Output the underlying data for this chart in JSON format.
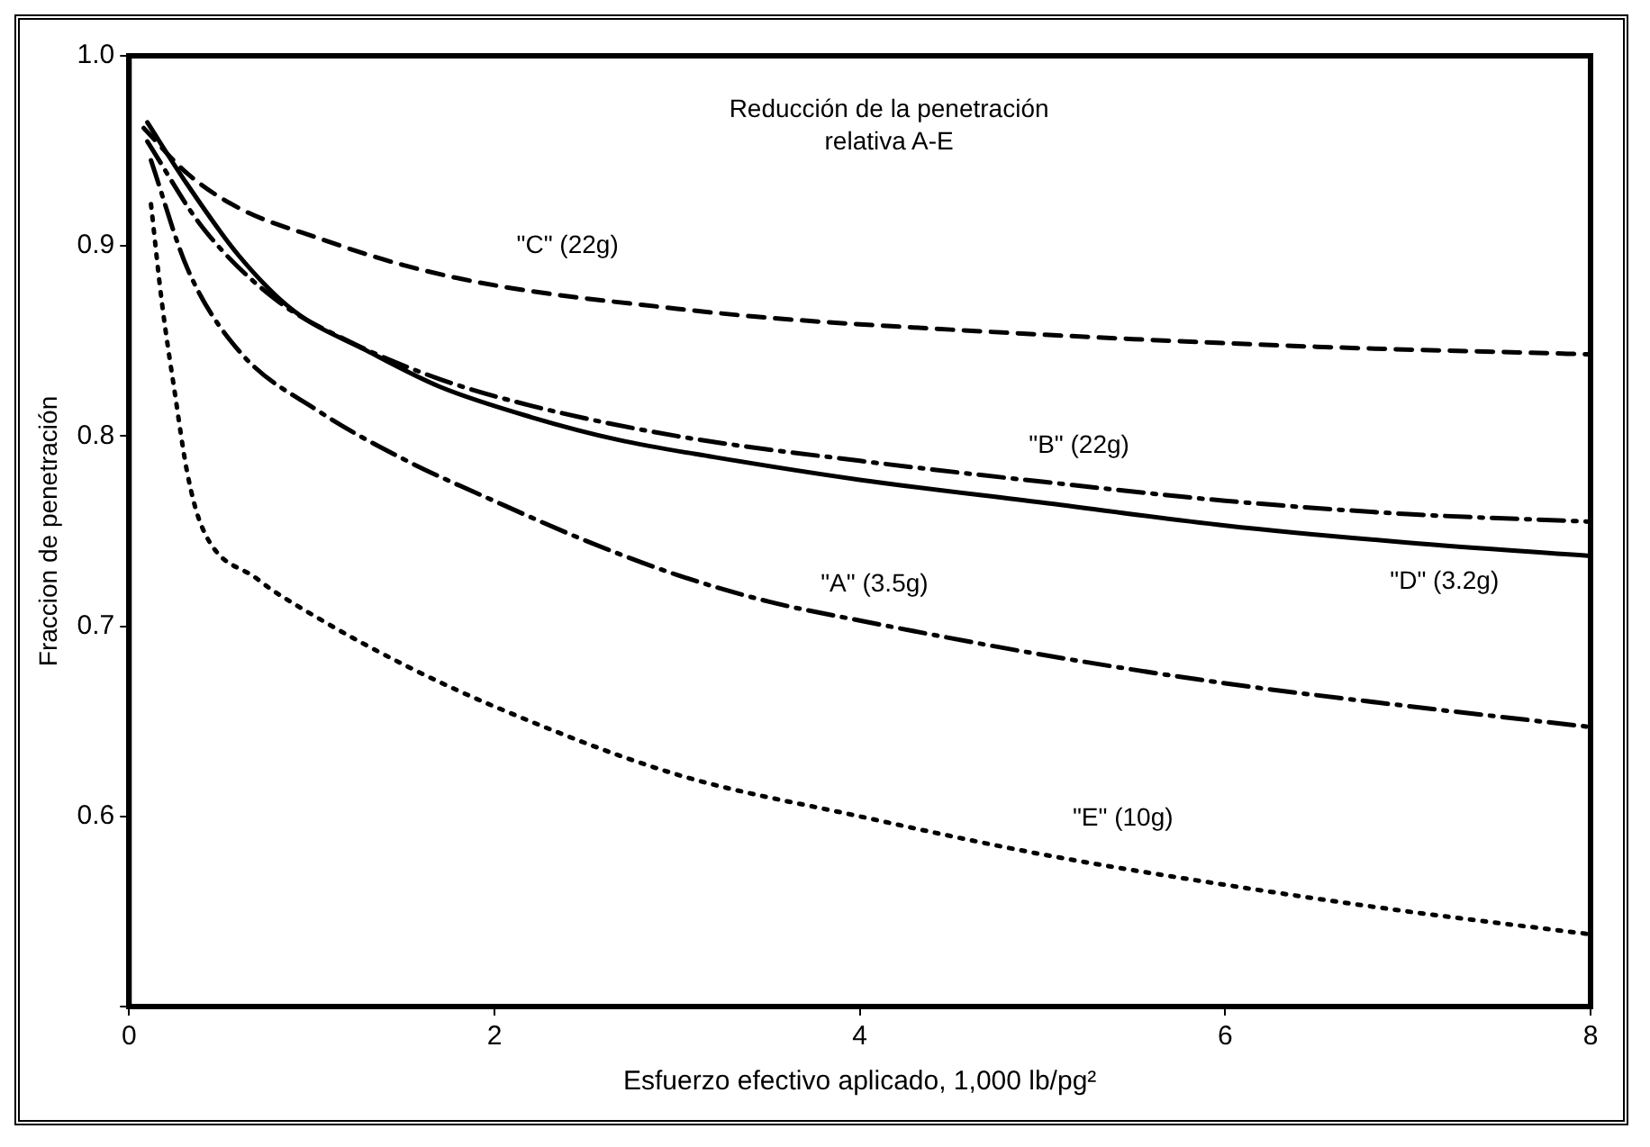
{
  "chart_data": {
    "type": "line",
    "title": "Reducción de la penetración\nrelativa A-E",
    "xlabel": "Esfuerzo efectivo aplicado, 1,000 lb/pg²",
    "ylabel": "Fraccion de penetración",
    "xlim": [
      0,
      8
    ],
    "xticks": [
      0,
      2,
      4,
      6,
      8
    ],
    "ylim": [
      0.5,
      1.0
    ],
    "yticks": [
      {
        "value": 0.5,
        "label": null
      },
      0.6,
      0.7,
      0.8,
      0.9,
      {
        "value": 1.0,
        "label": "1.0"
      }
    ],
    "grid": false,
    "legend": false,
    "marker": "none",
    "series": [
      {
        "name": "\"C\" (22g)",
        "color": "#000000",
        "line_style": "dashed",
        "x": [
          0.08,
          0.32,
          0.6,
          1.04,
          1.5,
          2.02,
          3.0,
          3.53,
          4.5,
          5.5,
          6.5,
          8
        ],
        "values": [
          0.962,
          0.938,
          0.92,
          0.904,
          0.89,
          0.879,
          0.867,
          0.862,
          0.856,
          0.851,
          0.847,
          0.843
        ]
      },
      {
        "name": "\"B\" (22g)",
        "color": "#000000",
        "line_style": "dashdot",
        "x": [
          0.1,
          0.4,
          0.8,
          1.2,
          1.7,
          2.2,
          3,
          4,
          5,
          6,
          7,
          8
        ],
        "values": [
          0.955,
          0.91,
          0.872,
          0.85,
          0.83,
          0.816,
          0.8,
          0.787,
          0.776,
          0.766,
          0.759,
          0.755
        ]
      },
      {
        "name": "\"D\" (3.2g)",
        "color": "#000000",
        "line_style": "solid",
        "x": [
          0.1,
          0.3,
          0.6,
          0.9,
          1.3,
          1.7,
          2.2,
          2.68,
          3.2,
          4,
          5,
          6,
          7,
          8
        ],
        "values": [
          0.965,
          0.935,
          0.895,
          0.866,
          0.845,
          0.826,
          0.81,
          0.798,
          0.789,
          0.777,
          0.765,
          0.753,
          0.744,
          0.737
        ]
      },
      {
        "name": "\"A\" (3.5g)",
        "color": "#000000",
        "line_style": "dashdot",
        "x": [
          0.12,
          0.32,
          0.6,
          1.04,
          1.5,
          2.02,
          2.5,
          3,
          3.5,
          4,
          5,
          6,
          7,
          8
        ],
        "values": [
          0.945,
          0.888,
          0.845,
          0.813,
          0.788,
          0.765,
          0.745,
          0.727,
          0.713,
          0.703,
          0.685,
          0.67,
          0.658,
          0.647
        ]
      },
      {
        "name": "\"E\" (10g)",
        "color": "#000000",
        "line_style": "dotted",
        "x": [
          0.12,
          0.18,
          0.25,
          0.32,
          0.4,
          0.7,
          1.04,
          1.5,
          2.02,
          3,
          4,
          5,
          6,
          7,
          8
        ],
        "values": [
          0.922,
          0.87,
          0.823,
          0.78,
          0.752,
          0.725,
          0.704,
          0.68,
          0.657,
          0.622,
          0.6,
          0.58,
          0.564,
          0.55,
          0.538
        ]
      }
    ]
  }
}
